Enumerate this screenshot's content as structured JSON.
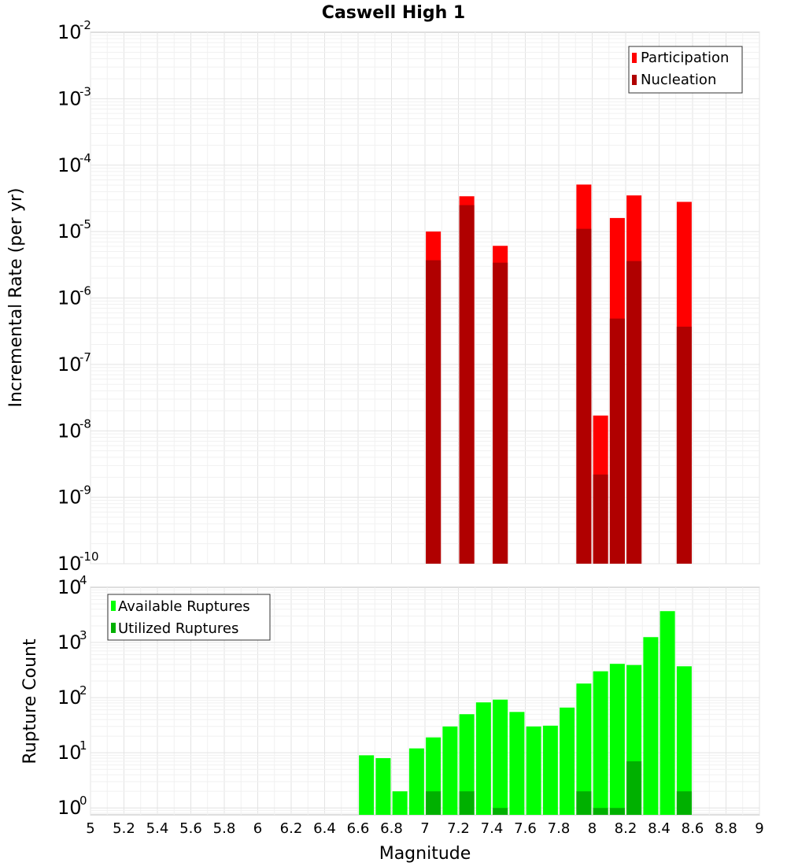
{
  "chart_data": [
    {
      "type": "bar",
      "title": "Caswell High 1",
      "ylabel": "Incremental Rate (per yr)",
      "xlabel": "",
      "yscale": "log",
      "ylim": [
        1e-10,
        0.01
      ],
      "xlim": [
        5,
        9
      ],
      "yticks": [
        {
          "base": "10",
          "exp": "-2"
        },
        {
          "base": "10",
          "exp": "-3"
        },
        {
          "base": "10",
          "exp": "-4"
        },
        {
          "base": "10",
          "exp": "-5"
        },
        {
          "base": "10",
          "exp": "-6"
        },
        {
          "base": "10",
          "exp": "-7"
        },
        {
          "base": "10",
          "exp": "-8"
        },
        {
          "base": "10",
          "exp": "-9"
        },
        {
          "base": "10",
          "exp": "-10"
        }
      ],
      "legend": {
        "position": "top-right",
        "entries": [
          "Participation",
          "Nucleation"
        ]
      },
      "colors": {
        "Participation": "#ff0000",
        "Nucleation": "#b00000"
      },
      "x": [
        7.05,
        7.25,
        7.45,
        7.95,
        8.05,
        8.15,
        8.25,
        8.55
      ],
      "series": [
        {
          "name": "Participation",
          "values": [
            1e-05,
            3.4e-05,
            6.1e-06,
            5.1e-05,
            1.7e-08,
            1.6e-05,
            3.5e-05,
            2.8e-05
          ]
        },
        {
          "name": "Nucleation",
          "values": [
            3.7e-06,
            2.5e-05,
            3.4e-06,
            1.1e-05,
            2.2e-09,
            4.9e-07,
            3.6e-06,
            3.7e-07
          ]
        }
      ],
      "grid": true
    },
    {
      "type": "bar",
      "title": "",
      "ylabel": "Rupture Count",
      "xlabel": "Magnitude",
      "yscale": "log",
      "ylim": [
        0.75,
        10000
      ],
      "xlim": [
        5,
        9
      ],
      "xticks": [
        "5",
        "5.2",
        "5.4",
        "5.6",
        "5.8",
        "6",
        "6.2",
        "6.4",
        "6.6",
        "6.8",
        "7",
        "7.2",
        "7.4",
        "7.6",
        "7.8",
        "8",
        "8.2",
        "8.4",
        "8.6",
        "8.8",
        "9"
      ],
      "yticks": [
        {
          "base": "10",
          "exp": "4"
        },
        {
          "base": "10",
          "exp": "3"
        },
        {
          "base": "10",
          "exp": "2"
        },
        {
          "base": "10",
          "exp": "1"
        },
        {
          "base": "10",
          "exp": "0"
        }
      ],
      "legend": {
        "position": "top-left",
        "entries": [
          "Available Ruptures",
          "Utilized Ruptures"
        ]
      },
      "colors": {
        "Available Ruptures": "#00ff00",
        "Utilized Ruptures": "#00b000"
      },
      "x": [
        6.65,
        6.75,
        6.85,
        6.95,
        7.05,
        7.15,
        7.25,
        7.35,
        7.45,
        7.55,
        7.65,
        7.75,
        7.85,
        7.95,
        8.05,
        8.15,
        8.25,
        8.35,
        8.45,
        8.55
      ],
      "series": [
        {
          "name": "Available Ruptures",
          "values": [
            9,
            8,
            2,
            12,
            19,
            30,
            50,
            82,
            92,
            55,
            30,
            31,
            66,
            180,
            300,
            410,
            390,
            1250,
            3700,
            370
          ]
        },
        {
          "name": "Utilized Ruptures",
          "values": [
            0,
            0,
            0,
            0,
            2,
            0,
            2,
            0,
            1,
            0,
            0,
            0,
            0,
            2,
            1,
            1,
            7,
            0,
            0,
            2
          ]
        }
      ],
      "grid": true
    }
  ]
}
